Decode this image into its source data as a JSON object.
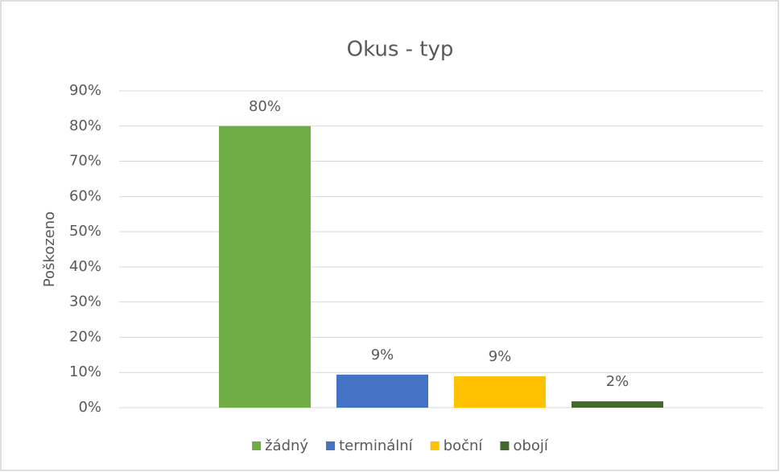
{
  "chart_data": {
    "type": "bar",
    "title": "Okus - typ",
    "y_label": "Poškozeno",
    "categories": [
      null
    ],
    "series": [
      {
        "name": "žádný",
        "color": "#70ad47",
        "values": [
          80
        ],
        "value_labels": [
          "80%"
        ]
      },
      {
        "name": "terminální",
        "color": "#4472c4",
        "values": [
          9.4
        ],
        "value_labels": [
          "9%"
        ]
      },
      {
        "name": "boční",
        "color": "#ffc000",
        "values": [
          8.9
        ],
        "value_labels": [
          "9%"
        ]
      },
      {
        "name": "obojí",
        "color": "#43682b",
        "values": [
          1.8
        ],
        "value_labels": [
          "2%"
        ]
      }
    ],
    "ylim": [
      0,
      90
    ],
    "yticks": [
      {
        "value": 0,
        "label": "0%"
      },
      {
        "value": 10,
        "label": "10%"
      },
      {
        "value": 20,
        "label": "20%"
      },
      {
        "value": 30,
        "label": "30%"
      },
      {
        "value": 40,
        "label": "40%"
      },
      {
        "value": 50,
        "label": "50%"
      },
      {
        "value": 60,
        "label": "60%"
      },
      {
        "value": 70,
        "label": "70%"
      },
      {
        "value": 80,
        "label": "80%"
      },
      {
        "value": 90,
        "label": "90%"
      }
    ],
    "grid": true,
    "legend": "bottom"
  }
}
